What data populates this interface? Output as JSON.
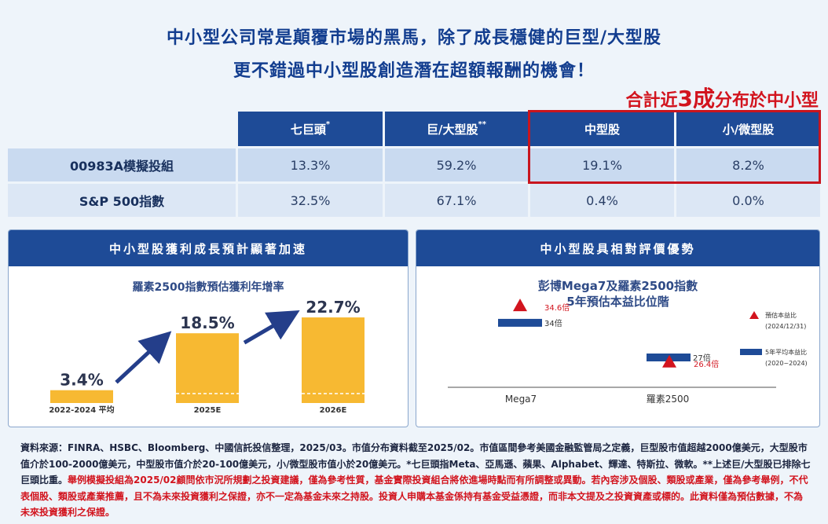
{
  "headline": {
    "line1": "中小型公司常是顛覆市場的黑馬，除了成長穩健的巨型/大型股",
    "line2": "更不錯過中小型股創造潛在超額報酬的機會！",
    "callout_pre": "合計近",
    "callout_big": "3成",
    "callout_post": "分布於中小型"
  },
  "allocation_table": {
    "columns": [
      "七巨頭",
      "巨/大型股",
      "中型股",
      "小/微型股"
    ],
    "column_marks": [
      "*",
      "**",
      "",
      ""
    ],
    "rows": [
      {
        "label": "00983A模擬投組",
        "values": [
          "13.3%",
          "59.2%",
          "19.1%",
          "8.2%"
        ]
      },
      {
        "label": "S&P 500指數",
        "values": [
          "32.5%",
          "67.1%",
          "0.4%",
          "0.0%"
        ]
      }
    ]
  },
  "colors": {
    "navy": "#1e4b97",
    "accent_red": "#d2141e",
    "bar_yellow": "#f7b932"
  },
  "left_panel": {
    "heading": "中小型股獲利成長預計顯著加速",
    "chart_title": "羅素2500指數預估獲利年增率"
  },
  "right_panel": {
    "heading": "中小型股具相對評價優勢",
    "chart_title_line1": "彭博Mega7及羅素2500指數",
    "chart_title_line2": "5年預估本益比位階",
    "legend": [
      {
        "label": "預估本益比",
        "sub": "(2024/12/31)",
        "icon": "red-triangle"
      },
      {
        "label": "5年平均本益比",
        "sub": "(2020~2024)",
        "icon": "blue-bar"
      }
    ]
  },
  "chart_data": [
    {
      "type": "bar",
      "title": "羅素2500指數預估獲利年增率",
      "categories": [
        "2022-2024 平均",
        "2025E",
        "2026E"
      ],
      "values": [
        3.4,
        18.5,
        22.7
      ],
      "value_labels": [
        "3.4%",
        "18.5%",
        "22.7%"
      ],
      "ylim": [
        0,
        25
      ]
    },
    {
      "type": "scatter",
      "title": "彭博Mega7及羅素2500指數 5年預估本益比位階",
      "categories": [
        "Mega7",
        "羅素2500"
      ],
      "series": [
        {
          "name": "預估本益比",
          "values": [
            34.6,
            26.4
          ],
          "labels": [
            "34.6倍",
            "26.4倍"
          ]
        },
        {
          "name": "5年平均本益比",
          "values": [
            34,
            27
          ],
          "labels": [
            "34倍",
            "27倍"
          ]
        }
      ],
      "ylim": [
        22,
        39
      ]
    }
  ],
  "footnote": {
    "black": "資料來源：FINRA、HSBC、Bloomberg、中國信託投信整理，2025/03。市值分布資料截至2025/02。市值區間參考美國金融監管局之定義，巨型股市值超越2000億美元，大型股市值介於100-2000億美元，中型股市值介於20-100億美元，小/微型股市值小於20億美元。*七巨頭指Meta、亞馬遜、蘋果、Alphabet、輝達、特斯拉、微軟。**上述巨/大型股已排除七巨頭比重。",
    "red": "舉例模擬投組為2025/02顧問依市況所規劃之投資建議，僅為參考性質，基金實際投資組合將依進場時點而有所調整或異動。若內容涉及個股、類股或產業，僅為參考舉例，不代表個股、類股或產業推薦，且不為未來投資獲利之保證，亦不一定為基金未來之持股。投資人申購本基金係持有基金受益憑證，而非本文提及之投資資產或標的。此資料僅為預估數據，不為未來投資獲利之保證。"
  }
}
